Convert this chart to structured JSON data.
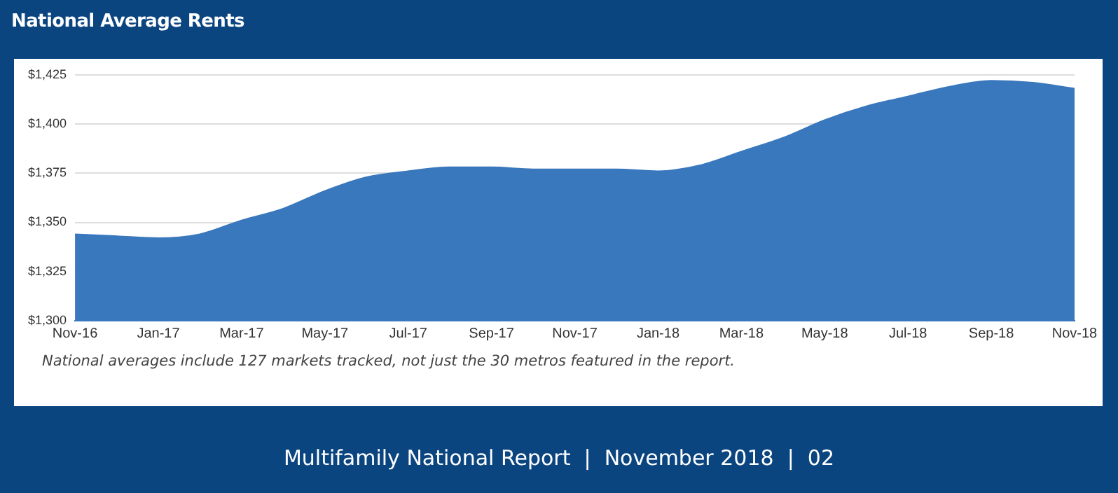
{
  "chart_data": {
    "type": "area",
    "title": "National Average Rents",
    "categories": [
      "Nov-16",
      null,
      "Jan-17",
      null,
      "Mar-17",
      null,
      "May-17",
      null,
      "Jul-17",
      null,
      "Sep-17",
      null,
      "Nov-17",
      null,
      "Jan-18",
      null,
      "Mar-18",
      null,
      "May-18",
      null,
      "Jul-18",
      null,
      "Sep-18",
      null,
      "Nov-18"
    ],
    "series": [
      {
        "color": "#3a78bd",
        "values": [
          1344,
          1343,
          1342,
          1344,
          1351,
          1357,
          1366,
          1373,
          1376,
          1378,
          1378,
          1377,
          1377,
          1377,
          1376,
          1379,
          1386,
          1393,
          1402,
          1409,
          1414,
          1419,
          1422,
          1421,
          1418
        ]
      }
    ],
    "ylim": [
      1300,
      1425
    ],
    "yticks": [
      {
        "value": 1300,
        "label": "$1,300"
      },
      {
        "value": 1325,
        "label": "$1,325"
      },
      {
        "value": 1350,
        "label": "$1,350"
      },
      {
        "value": 1375,
        "label": "$1,375"
      },
      {
        "value": 1400,
        "label": "$1,400"
      },
      {
        "value": 1425,
        "label": "$1,425"
      }
    ],
    "grid": "y",
    "legend": false,
    "annotations": [
      "National averages include 127 markets tracked, not just the 30 metros featured in the report.",
      "Multifamily National Report  |  November 2018  |  02"
    ]
  }
}
